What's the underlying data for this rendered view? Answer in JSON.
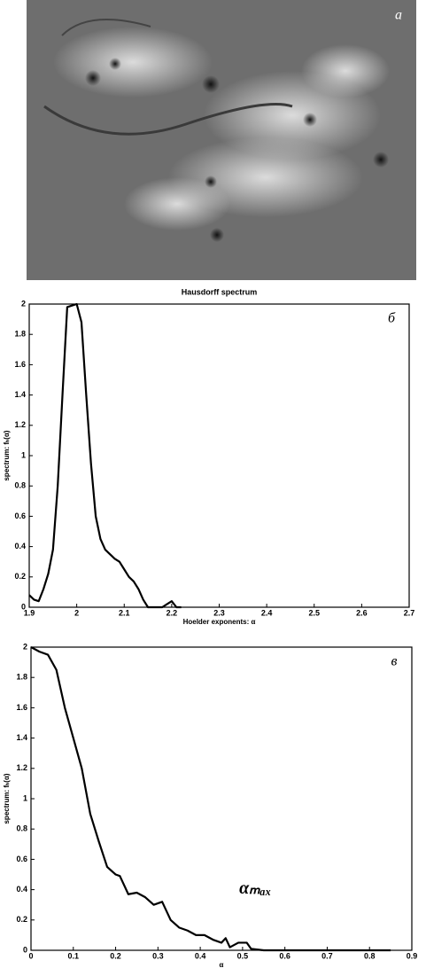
{
  "image": {
    "label": "а"
  },
  "chart_data": [
    {
      "type": "line",
      "title": "Hausdorff spectrum",
      "panel_label": "б",
      "x_label": "Hoelder exponents: α",
      "y_label": "spectrum: fₕ(α)",
      "color": "#000000",
      "x": [
        1.9,
        1.91,
        1.92,
        1.93,
        1.94,
        1.95,
        1.96,
        1.97,
        1.98,
        1.99,
        2.0,
        2.01,
        2.02,
        2.03,
        2.04,
        2.05,
        2.06,
        2.07,
        2.08,
        2.09,
        2.1,
        2.11,
        2.12,
        2.13,
        2.14,
        2.15,
        2.16,
        2.17,
        2.18,
        2.19,
        2.2,
        2.21,
        2.22
      ],
      "values": [
        0.08,
        0.05,
        0.04,
        0.12,
        0.22,
        0.38,
        0.8,
        1.4,
        1.98,
        1.99,
        2.0,
        1.88,
        1.4,
        0.95,
        0.6,
        0.45,
        0.38,
        0.35,
        0.32,
        0.3,
        0.25,
        0.2,
        0.17,
        0.12,
        0.05,
        0,
        0,
        0,
        0,
        0.02,
        0.04,
        0,
        0
      ],
      "xlim": [
        1.9,
        2.7
      ],
      "xticks": [
        1.9,
        2,
        2.1,
        2.2,
        2.3,
        2.4,
        2.5,
        2.6,
        2.7
      ],
      "ylim": [
        0,
        2
      ],
      "yticks": [
        0,
        0.2,
        0.4,
        0.6,
        0.8,
        1,
        1.2,
        1.4,
        1.6,
        1.8,
        2
      ]
    },
    {
      "type": "line",
      "panel_label": "в",
      "annotation": "αₘₐₓ",
      "x_label": "α",
      "y_label": "spectrum: fₕ(α)",
      "color": "#000000",
      "x": [
        0,
        0.02,
        0.04,
        0.06,
        0.08,
        0.1,
        0.12,
        0.14,
        0.16,
        0.18,
        0.2,
        0.21,
        0.23,
        0.25,
        0.27,
        0.29,
        0.31,
        0.33,
        0.35,
        0.37,
        0.39,
        0.41,
        0.43,
        0.45,
        0.46,
        0.47,
        0.49,
        0.51,
        0.52,
        0.55,
        0.85
      ],
      "values": [
        2,
        1.97,
        1.95,
        1.85,
        1.6,
        1.4,
        1.2,
        0.9,
        0.72,
        0.55,
        0.5,
        0.49,
        0.37,
        0.38,
        0.35,
        0.3,
        0.32,
        0.2,
        0.15,
        0.13,
        0.1,
        0.1,
        0.07,
        0.05,
        0.08,
        0.02,
        0.05,
        0.05,
        0.01,
        0,
        0
      ],
      "xlim": [
        0,
        0.9
      ],
      "xticks": [
        0,
        0.1,
        0.2,
        0.3,
        0.4,
        0.5,
        0.6,
        0.7,
        0.8,
        0.9
      ],
      "ylim": [
        0,
        2
      ],
      "yticks": [
        0,
        0.2,
        0.4,
        0.6,
        0.8,
        1,
        1.2,
        1.4,
        1.6,
        1.8,
        2
      ]
    }
  ]
}
